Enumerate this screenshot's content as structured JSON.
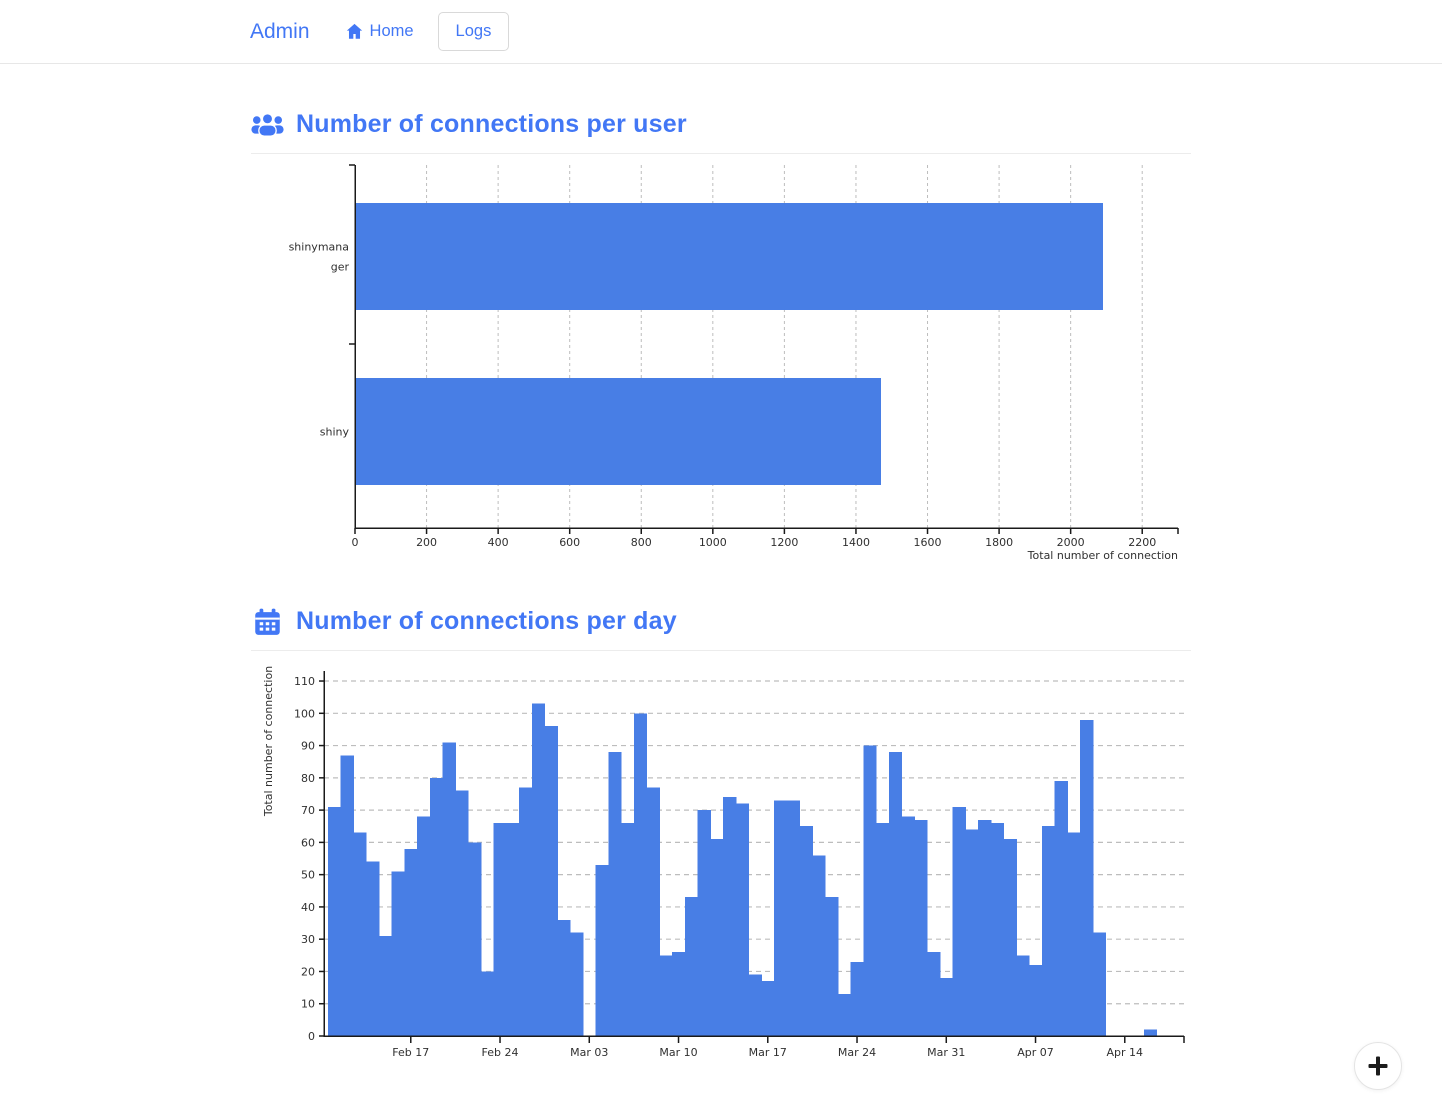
{
  "navbar": {
    "brand": "Admin",
    "home_label": "Home",
    "logs_label": "Logs"
  },
  "sections": [
    {
      "title": "Number of connections per user"
    },
    {
      "title": "Number of connections per day"
    }
  ],
  "fab": {
    "label": "+"
  },
  "colors": {
    "accent": "#4277f5",
    "bar": "#487ee5",
    "axis": "#1a1a1a",
    "grid": "#bdbdbd",
    "text": "#303030"
  },
  "chart_data": [
    {
      "type": "bar",
      "orientation": "horizontal",
      "title": "Number of connections per user",
      "categories": [
        "shinymanager",
        "shiny"
      ],
      "values": [
        2090,
        1470
      ],
      "xlabel": "Total number of connection",
      "xlim": [
        0,
        2300
      ],
      "xticks": [
        0,
        200,
        400,
        600,
        800,
        1000,
        1200,
        1400,
        1600,
        1800,
        2000,
        2200
      ],
      "grid": "vertical-dashed",
      "legend": "none"
    },
    {
      "type": "bar",
      "subtype": "histogram-daily",
      "title": "Number of connections per day",
      "ylabel": "Total number of connection",
      "ylim": [
        0,
        113
      ],
      "yticks": [
        0,
        10,
        20,
        30,
        40,
        50,
        60,
        70,
        80,
        90,
        100,
        110
      ],
      "x_tick_labels": [
        "Feb 17",
        "Feb 24",
        "Mar 03",
        "Mar 10",
        "Mar 17",
        "Mar 24",
        "Mar 31",
        "Apr 07",
        "Apr 14"
      ],
      "x_tick_day_indices": [
        6,
        13,
        20,
        27,
        34,
        41,
        48,
        55,
        62
      ],
      "x_start_day": "Feb 11",
      "values": [
        71,
        87,
        63,
        54,
        31,
        51,
        58,
        68,
        80,
        91,
        76,
        60,
        20,
        66,
        66,
        77,
        103,
        96,
        36,
        32,
        0,
        53,
        88,
        66,
        100,
        77,
        25,
        26,
        43,
        70,
        61,
        74,
        72,
        19,
        17,
        73,
        73,
        65,
        56,
        43,
        13,
        23,
        90,
        66,
        88,
        68,
        67,
        26,
        18,
        71,
        64,
        67,
        66,
        61,
        25,
        22,
        65,
        79,
        63,
        98,
        32,
        0,
        0,
        0,
        2
      ],
      "grid": "horizontal-dashed",
      "legend": "none"
    }
  ]
}
